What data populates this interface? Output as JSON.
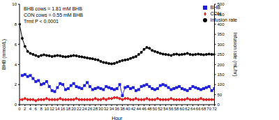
{
  "chart_data": {
    "type": "line",
    "annotations": [
      "BHB cows = 1.81 mM BHB",
      "CON cows = 0.55 mM BHB",
      "Trmt P < 0.0001"
    ],
    "x_label": "Hour",
    "y_label": "BHB (mmol/L)",
    "y2_label": "Infusion rate (mL/hr)",
    "x": [
      0,
      1,
      2,
      3,
      4,
      5,
      6,
      7,
      8,
      9,
      10,
      11,
      12,
      13,
      14,
      15,
      16,
      17,
      18,
      19,
      20,
      21,
      22,
      23,
      24,
      25,
      26,
      27,
      28,
      29,
      30,
      31,
      32,
      33,
      34,
      35,
      36,
      37,
      38,
      39,
      40,
      41,
      42,
      43,
      44,
      45,
      46,
      47,
      48,
      49,
      50,
      51,
      52,
      53,
      54,
      55,
      56,
      57,
      58,
      59,
      60,
      61,
      62,
      63,
      64,
      65,
      66,
      67,
      68,
      69,
      70,
      71,
      72
    ],
    "xlim": [
      0,
      72
    ],
    "xticks": [
      0,
      2,
      4,
      6,
      8,
      10,
      12,
      14,
      16,
      18,
      20,
      22,
      24,
      26,
      28,
      30,
      32,
      34,
      36,
      38,
      40,
      42,
      44,
      46,
      48,
      50,
      52,
      54,
      56,
      58,
      60,
      62,
      64,
      66,
      68,
      70,
      72
    ],
    "ylim": [
      0,
      10
    ],
    "yticks": [
      0,
      2,
      4,
      6,
      8,
      10
    ],
    "y2lim": [
      0,
      500
    ],
    "y2ticks": [
      0,
      50,
      100,
      150,
      200,
      250,
      300,
      350,
      400,
      450,
      500
    ],
    "legend": "upper right",
    "series": [
      {
        "name": "Infusion rate",
        "color": "#000000",
        "marker": "circle",
        "axis": "y2",
        "values": [
          400,
          330,
          290,
          265,
          255,
          250,
          245,
          240,
          245,
          248,
          245,
          243,
          240,
          242,
          245,
          243,
          240,
          238,
          240,
          242,
          245,
          243,
          240,
          238,
          235,
          233,
          230,
          228,
          225,
          222,
          215,
          210,
          208,
          205,
          203,
          205,
          210,
          215,
          220,
          222,
          225,
          230,
          235,
          240,
          250,
          260,
          275,
          285,
          280,
          270,
          265,
          260,
          255,
          252,
          250,
          248,
          245,
          250,
          252,
          248,
          250,
          252,
          255,
          250,
          248,
          250,
          252,
          250,
          248,
          250,
          252,
          250,
          250
        ]
      },
      {
        "name": "BHB",
        "color": "#1f1fd6",
        "marker": "square",
        "values": [
          null,
          2.9,
          3.0,
          2.8,
          2.9,
          2.6,
          2.3,
          2.4,
          2.0,
          2.1,
          2.3,
          1.8,
          1.4,
          1.3,
          1.7,
          2.1,
          2.0,
          1.5,
          1.6,
          1.9,
          2.1,
          1.8,
          1.7,
          1.6,
          1.9,
          2.2,
          1.8,
          1.5,
          1.6,
          1.7,
          1.6,
          1.5,
          1.8,
          1.7,
          1.6,
          1.5,
          1.6,
          2.0,
          0.9,
          1.7,
          1.8,
          1.6,
          1.7,
          1.4,
          1.5,
          1.8,
          1.9,
          2.0,
          1.8,
          1.6,
          1.5,
          1.6,
          1.9,
          2.0,
          1.9,
          1.7,
          1.5,
          1.6,
          1.7,
          1.8,
          1.6,
          1.5,
          1.4,
          1.6,
          1.8,
          1.7,
          1.6,
          1.5,
          1.6,
          1.7,
          1.8,
          1.4,
          1.6
        ]
      },
      {
        "name": "CON",
        "color": "#e02020",
        "marker": "diamond",
        "values": [
          0.5,
          0.5,
          0.6,
          0.5,
          0.5,
          0.5,
          0.4,
          0.5,
          0.5,
          0.5,
          0.6,
          0.5,
          0.5,
          0.5,
          0.5,
          0.6,
          0.5,
          0.5,
          0.5,
          0.5,
          0.5,
          0.6,
          0.5,
          0.5,
          0.5,
          0.5,
          0.5,
          0.5,
          0.6,
          0.5,
          0.5,
          0.6,
          0.5,
          0.6,
          0.6,
          0.7,
          0.7,
          0.6,
          0.5,
          0.6,
          0.6,
          0.5,
          0.5,
          0.6,
          0.5,
          0.5,
          0.5,
          0.6,
          0.5,
          0.5,
          0.5,
          0.6,
          0.5,
          0.5,
          0.5,
          0.5,
          0.6,
          0.5,
          0.5,
          0.5,
          0.5,
          0.5,
          0.6,
          0.5,
          0.5,
          0.5,
          0.5,
          0.6,
          0.5,
          0.5,
          0.5,
          0.5,
          0.5
        ]
      }
    ]
  }
}
